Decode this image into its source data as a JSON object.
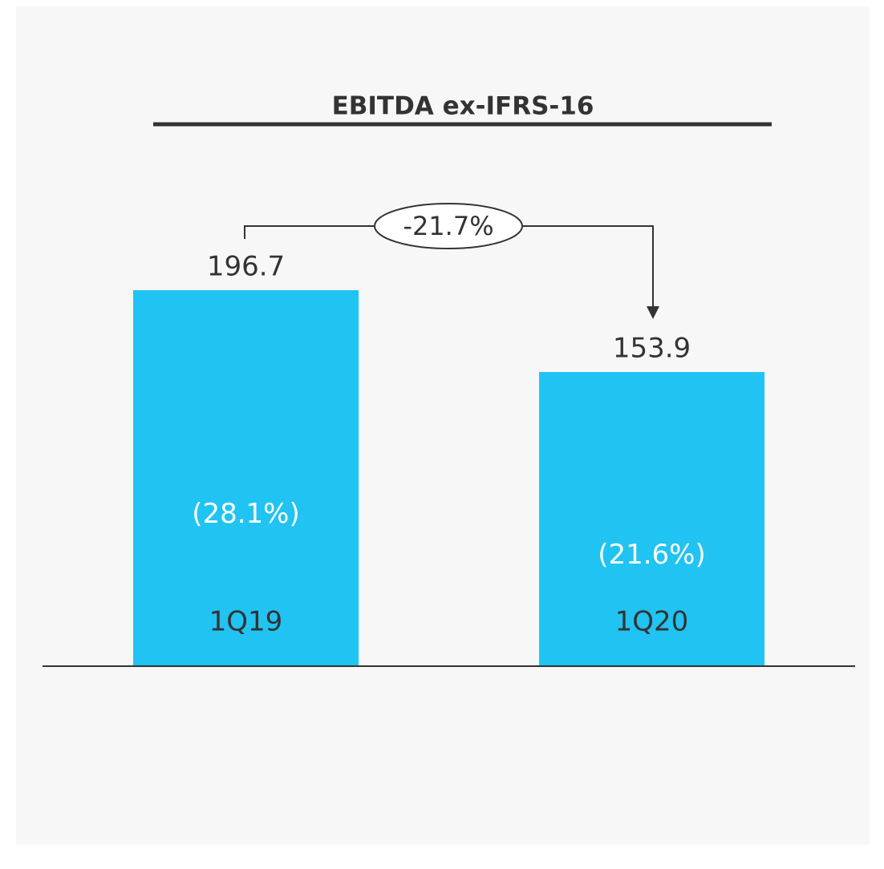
{
  "chart_data": {
    "type": "bar",
    "title": "EBITDA ex-IFRS-16",
    "categories": [
      "1Q19",
      "1Q20"
    ],
    "values": [
      196.7,
      153.9
    ],
    "color": "#21c3f3",
    "inner_labels": [
      "(28.1%)",
      "(21.6%)"
    ],
    "change_label": "-21.7%"
  }
}
